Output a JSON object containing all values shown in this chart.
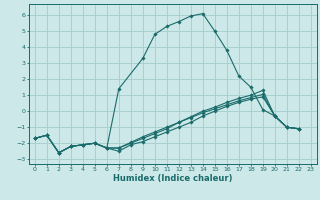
{
  "xlabel": "Humidex (Indice chaleur)",
  "xlim": [
    -0.5,
    23.5
  ],
  "ylim": [
    -3.3,
    6.7
  ],
  "yticks": [
    -3,
    -2,
    -1,
    0,
    1,
    2,
    3,
    4,
    5,
    6
  ],
  "xticks": [
    0,
    1,
    2,
    3,
    4,
    5,
    6,
    7,
    8,
    9,
    10,
    11,
    12,
    13,
    14,
    15,
    16,
    17,
    18,
    19,
    20,
    21,
    22,
    23
  ],
  "bg_color": "#cde8e8",
  "grid_color": "#aad0d0",
  "line_color": "#1a6b6b",
  "line1_x": [
    0,
    1,
    2,
    3,
    4,
    5,
    6,
    7,
    9,
    10,
    11,
    12,
    13,
    14,
    15,
    16,
    17,
    18,
    19,
    20,
    21,
    22
  ],
  "line1_y": [
    -1.7,
    -1.5,
    -2.6,
    -2.2,
    -2.1,
    -2.0,
    -2.3,
    1.4,
    3.3,
    4.8,
    5.3,
    5.6,
    5.95,
    6.1,
    5.0,
    3.8,
    2.2,
    1.5,
    0.1,
    -0.3,
    -1.0,
    -1.1
  ],
  "line2_x": [
    0,
    1,
    2,
    3,
    4,
    5,
    6,
    7,
    8,
    9,
    10,
    11,
    12,
    13,
    14,
    15,
    16,
    17,
    18,
    19,
    20,
    21,
    22
  ],
  "line2_y": [
    -1.7,
    -1.5,
    -2.6,
    -2.2,
    -2.1,
    -2.0,
    -2.3,
    -2.5,
    -2.1,
    -1.9,
    -1.6,
    -1.3,
    -1.0,
    -0.7,
    -0.3,
    0.0,
    0.3,
    0.55,
    0.75,
    0.9,
    -0.3,
    -1.0,
    -1.1
  ],
  "line3_x": [
    0,
    1,
    2,
    3,
    4,
    5,
    6,
    7,
    8,
    9,
    10,
    11,
    12,
    13,
    14,
    15,
    16,
    17,
    18,
    19,
    20,
    21,
    22
  ],
  "line3_y": [
    -1.7,
    -1.5,
    -2.6,
    -2.2,
    -2.1,
    -2.0,
    -2.3,
    -2.3,
    -2.0,
    -1.7,
    -1.4,
    -1.1,
    -0.7,
    -0.4,
    -0.1,
    0.15,
    0.4,
    0.65,
    0.85,
    1.05,
    -0.3,
    -1.0,
    -1.1
  ],
  "line4_x": [
    0,
    1,
    2,
    3,
    4,
    5,
    6,
    7,
    8,
    9,
    10,
    11,
    12,
    13,
    14,
    15,
    16,
    17,
    18,
    19,
    20,
    21,
    22
  ],
  "line4_y": [
    -1.7,
    -1.5,
    -2.6,
    -2.2,
    -2.1,
    -2.0,
    -2.3,
    -2.3,
    -1.95,
    -1.6,
    -1.3,
    -1.0,
    -0.7,
    -0.35,
    0.0,
    0.25,
    0.55,
    0.8,
    1.0,
    1.3,
    -0.3,
    -1.0,
    -1.1
  ]
}
